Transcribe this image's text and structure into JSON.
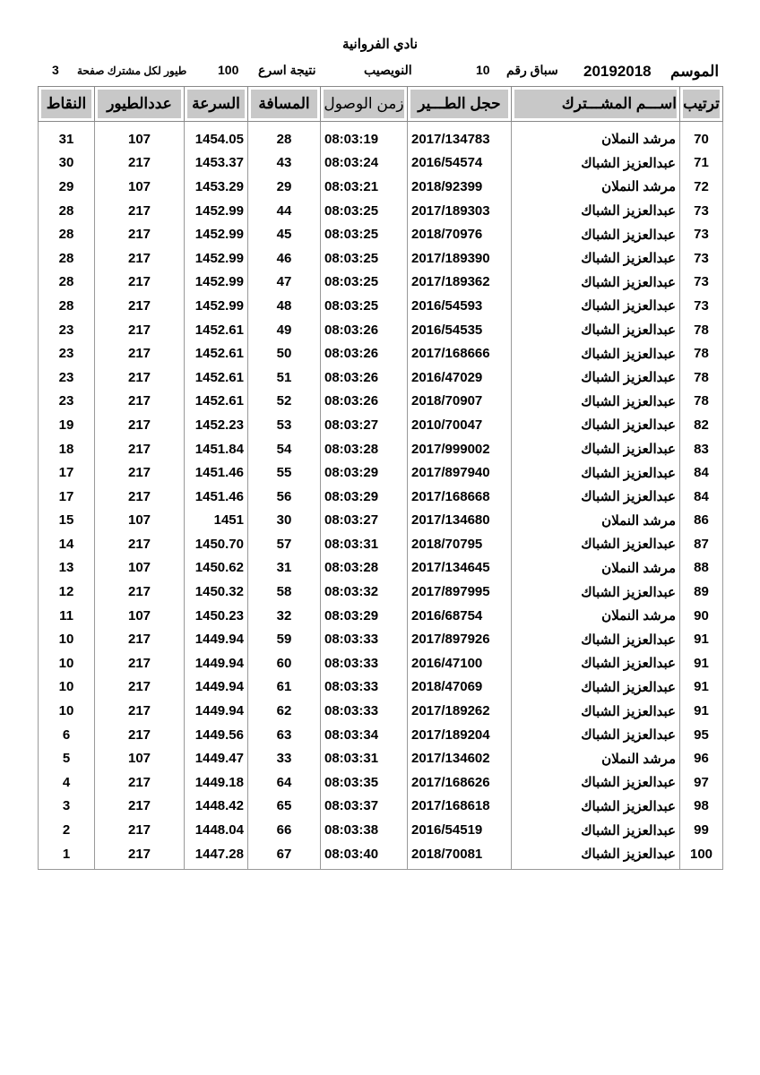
{
  "club": "نادي الفروانية",
  "info": {
    "season_label": "الموسم",
    "season": "20192018",
    "race_label": "سباق رقم",
    "race_no": "10",
    "location": "النويصيب",
    "result_label": "نتيجة اسرع",
    "result_count": "100",
    "birds_label": "طيور لكل مشترك صفحة",
    "page": "3"
  },
  "columns": {
    "rank": "ترتيب",
    "name": "اســـم المشـــترك",
    "ring": "حجل الطـــير",
    "time": "زمن الوصول",
    "distance": "المسافة",
    "speed": "السرعة",
    "birds": "عددالطيور",
    "points": "النقاط"
  },
  "rows": [
    [
      "70",
      "مرشد النملان",
      "2017/134783",
      "08:03:19",
      "28",
      "1454.05",
      "107",
      "31"
    ],
    [
      "71",
      "عبدالعزيز الشباك",
      "2016/54574",
      "08:03:24",
      "43",
      "1453.37",
      "217",
      "30"
    ],
    [
      "72",
      "مرشد النملان",
      "2018/92399",
      "08:03:21",
      "29",
      "1453.29",
      "107",
      "29"
    ],
    [
      "73",
      "عبدالعزيز الشباك",
      "2017/189303",
      "08:03:25",
      "44",
      "1452.99",
      "217",
      "28"
    ],
    [
      "73",
      "عبدالعزيز الشباك",
      "2018/70976",
      "08:03:25",
      "45",
      "1452.99",
      "217",
      "28"
    ],
    [
      "73",
      "عبدالعزيز الشباك",
      "2017/189390",
      "08:03:25",
      "46",
      "1452.99",
      "217",
      "28"
    ],
    [
      "73",
      "عبدالعزيز الشباك",
      "2017/189362",
      "08:03:25",
      "47",
      "1452.99",
      "217",
      "28"
    ],
    [
      "73",
      "عبدالعزيز الشباك",
      "2016/54593",
      "08:03:25",
      "48",
      "1452.99",
      "217",
      "28"
    ],
    [
      "78",
      "عبدالعزيز الشباك",
      "2016/54535",
      "08:03:26",
      "49",
      "1452.61",
      "217",
      "23"
    ],
    [
      "78",
      "عبدالعزيز الشباك",
      "2017/168666",
      "08:03:26",
      "50",
      "1452.61",
      "217",
      "23"
    ],
    [
      "78",
      "عبدالعزيز الشباك",
      "2016/47029",
      "08:03:26",
      "51",
      "1452.61",
      "217",
      "23"
    ],
    [
      "78",
      "عبدالعزيز الشباك",
      "2018/70907",
      "08:03:26",
      "52",
      "1452.61",
      "217",
      "23"
    ],
    [
      "82",
      "عبدالعزيز الشباك",
      "2010/70047",
      "08:03:27",
      "53",
      "1452.23",
      "217",
      "19"
    ],
    [
      "83",
      "عبدالعزيز الشباك",
      "2017/999002",
      "08:03:28",
      "54",
      "1451.84",
      "217",
      "18"
    ],
    [
      "84",
      "عبدالعزيز الشباك",
      "2017/897940",
      "08:03:29",
      "55",
      "1451.46",
      "217",
      "17"
    ],
    [
      "84",
      "عبدالعزيز الشباك",
      "2017/168668",
      "08:03:29",
      "56",
      "1451.46",
      "217",
      "17"
    ],
    [
      "86",
      "مرشد النملان",
      "2017/134680",
      "08:03:27",
      "30",
      "1451",
      "107",
      "15"
    ],
    [
      "87",
      "عبدالعزيز الشباك",
      "2018/70795",
      "08:03:31",
      "57",
      "1450.70",
      "217",
      "14"
    ],
    [
      "88",
      "مرشد النملان",
      "2017/134645",
      "08:03:28",
      "31",
      "1450.62",
      "107",
      "13"
    ],
    [
      "89",
      "عبدالعزيز الشباك",
      "2017/897995",
      "08:03:32",
      "58",
      "1450.32",
      "217",
      "12"
    ],
    [
      "90",
      "مرشد النملان",
      "2016/68754",
      "08:03:29",
      "32",
      "1450.23",
      "107",
      "11"
    ],
    [
      "91",
      "عبدالعزيز الشباك",
      "2017/897926",
      "08:03:33",
      "59",
      "1449.94",
      "217",
      "10"
    ],
    [
      "91",
      "عبدالعزيز الشباك",
      "2016/47100",
      "08:03:33",
      "60",
      "1449.94",
      "217",
      "10"
    ],
    [
      "91",
      "عبدالعزيز الشباك",
      "2018/47069",
      "08:03:33",
      "61",
      "1449.94",
      "217",
      "10"
    ],
    [
      "91",
      "عبدالعزيز الشباك",
      "2017/189262",
      "08:03:33",
      "62",
      "1449.94",
      "217",
      "10"
    ],
    [
      "95",
      "عبدالعزيز الشباك",
      "2017/189204",
      "08:03:34",
      "63",
      "1449.56",
      "217",
      "6"
    ],
    [
      "96",
      "مرشد النملان",
      "2017/134602",
      "08:03:31",
      "33",
      "1449.47",
      "107",
      "5"
    ],
    [
      "97",
      "عبدالعزيز الشباك",
      "2017/168626",
      "08:03:35",
      "64",
      "1449.18",
      "217",
      "4"
    ],
    [
      "98",
      "عبدالعزيز الشباك",
      "2017/168618",
      "08:03:37",
      "65",
      "1448.42",
      "217",
      "3"
    ],
    [
      "99",
      "عبدالعزيز الشباك",
      "2016/54519",
      "08:03:38",
      "66",
      "1448.04",
      "217",
      "2"
    ],
    [
      "100",
      "عبدالعزيز الشباك",
      "2018/70081",
      "08:03:40",
      "67",
      "1447.28",
      "217",
      "1"
    ]
  ]
}
